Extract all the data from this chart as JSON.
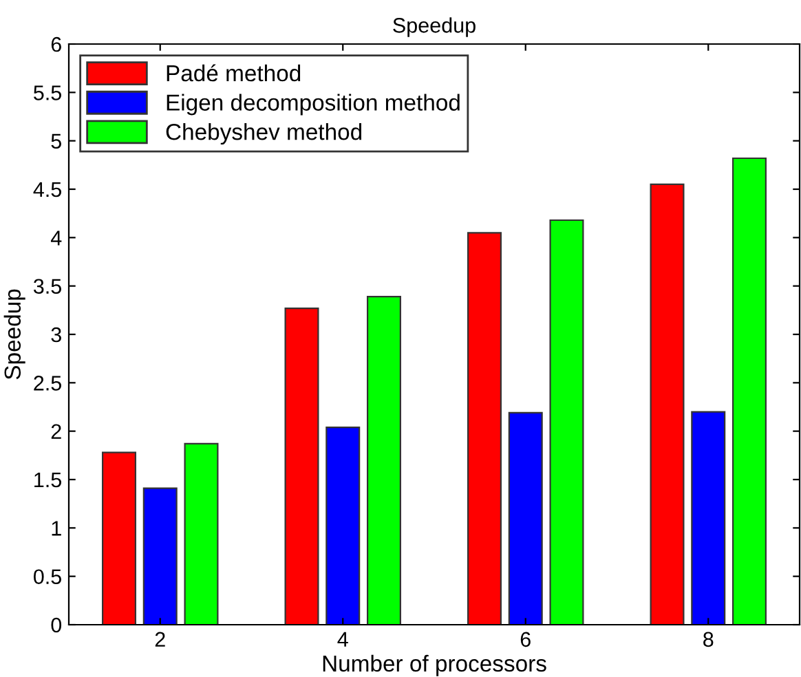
{
  "chart_data": {
    "type": "bar",
    "title": "Speedup",
    "xlabel": "Number of processors",
    "ylabel": "Speedup",
    "categories": [
      "2",
      "4",
      "6",
      "8"
    ],
    "series": [
      {
        "name": "Padé method",
        "color": "#ff0000",
        "values": [
          1.78,
          3.27,
          4.05,
          4.55
        ]
      },
      {
        "name": "Eigen decomposition method",
        "color": "#0000ff",
        "values": [
          1.41,
          2.04,
          2.19,
          2.2
        ]
      },
      {
        "name": "Chebyshev method",
        "color": "#00ff00",
        "values": [
          1.87,
          3.39,
          4.18,
          4.82
        ]
      }
    ],
    "ylim": [
      0,
      6
    ],
    "yticks": [
      0,
      0.5,
      1,
      1.5,
      2,
      2.5,
      3,
      3.5,
      4,
      4.5,
      5,
      5.5,
      6
    ],
    "grid": false,
    "legend": "top left"
  }
}
